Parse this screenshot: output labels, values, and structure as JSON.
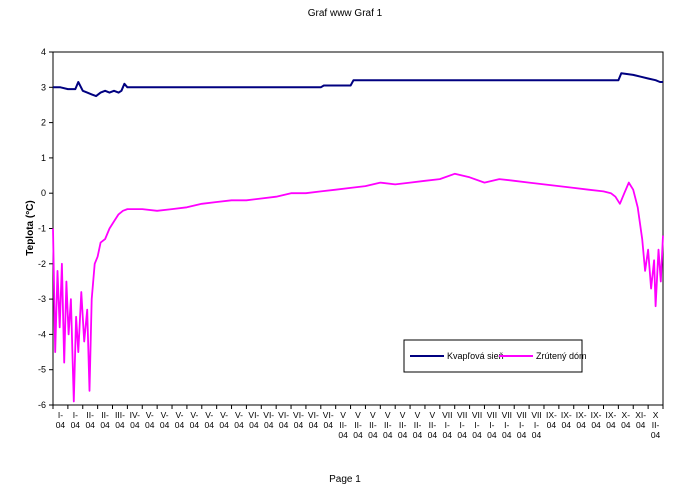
{
  "header": {
    "title": "Graf www Graf 1"
  },
  "footer": {
    "page_label": "Page 1"
  },
  "chart_data": {
    "type": "line",
    "title": "",
    "xlabel": "",
    "ylabel": "Teplota (°C)",
    "ylim": [
      -6,
      4
    ],
    "yticks": [
      4,
      3,
      2,
      1,
      0,
      -1,
      -2,
      -3,
      -4,
      -5,
      -6
    ],
    "grid": false,
    "legend_position": "bottom-right",
    "x_tick_labels": [
      "I-04",
      "I-04",
      "II-04",
      "II-04",
      "III-04",
      "IV-04",
      "V-04",
      "V-04",
      "V-04",
      "V-04",
      "V-04",
      "V-04",
      "V-04",
      "VI-04",
      "VI-04",
      "VI-04",
      "VI-04",
      "VI-04",
      "VI-04",
      "V II-04",
      "V II-04",
      "V II-04",
      "V II-04",
      "V II-04",
      "V II-04",
      "V II-04",
      "VII I-04",
      "VII I-04",
      "VII I-04",
      "VII I-04",
      "VII I-04",
      "VII I-04",
      "VII I-04",
      "IX-04",
      "IX-04",
      "IX-04",
      "IX-04",
      "IX-04",
      "X-04",
      "XI-04",
      "X II-04"
    ],
    "series": [
      {
        "name": "Kvapľová sieň",
        "color": "#000080",
        "points": [
          [
            0,
            3.0
          ],
          [
            0.5,
            3.0
          ],
          [
            1.0,
            2.95
          ],
          [
            1.5,
            2.95
          ],
          [
            1.7,
            3.15
          ],
          [
            2.0,
            2.9
          ],
          [
            2.3,
            2.85
          ],
          [
            2.6,
            2.8
          ],
          [
            2.9,
            2.75
          ],
          [
            3.2,
            2.85
          ],
          [
            3.5,
            2.9
          ],
          [
            3.8,
            2.85
          ],
          [
            4.1,
            2.9
          ],
          [
            4.4,
            2.85
          ],
          [
            4.6,
            2.9
          ],
          [
            4.8,
            3.1
          ],
          [
            5.0,
            3.0
          ],
          [
            6,
            3.0
          ],
          [
            8,
            3.0
          ],
          [
            10,
            3.0
          ],
          [
            12,
            3.0
          ],
          [
            14,
            3.0
          ],
          [
            16,
            3.0
          ],
          [
            18,
            3.0
          ],
          [
            18.2,
            3.05
          ],
          [
            20,
            3.05
          ],
          [
            20.2,
            3.2
          ],
          [
            24,
            3.2
          ],
          [
            28,
            3.2
          ],
          [
            32,
            3.2
          ],
          [
            36,
            3.2
          ],
          [
            38,
            3.2
          ],
          [
            38.2,
            3.4
          ],
          [
            39,
            3.35
          ],
          [
            39.5,
            3.3
          ],
          [
            40,
            3.25
          ],
          [
            40.5,
            3.2
          ],
          [
            40.8,
            3.15
          ],
          [
            41,
            3.15
          ]
        ]
      },
      {
        "name": "Zrútený dóm",
        "color": "#ff00ff",
        "points": [
          [
            0,
            -1.0
          ],
          [
            0.15,
            -4.5
          ],
          [
            0.3,
            -2.2
          ],
          [
            0.45,
            -3.8
          ],
          [
            0.6,
            -2.0
          ],
          [
            0.75,
            -4.8
          ],
          [
            0.9,
            -2.5
          ],
          [
            1.05,
            -4.0
          ],
          [
            1.2,
            -3.0
          ],
          [
            1.4,
            -5.9
          ],
          [
            1.55,
            -3.5
          ],
          [
            1.7,
            -4.5
          ],
          [
            1.9,
            -2.8
          ],
          [
            2.1,
            -4.2
          ],
          [
            2.3,
            -3.3
          ],
          [
            2.45,
            -5.6
          ],
          [
            2.6,
            -3.0
          ],
          [
            2.8,
            -2.0
          ],
          [
            3.0,
            -1.8
          ],
          [
            3.2,
            -1.4
          ],
          [
            3.5,
            -1.3
          ],
          [
            3.8,
            -1.0
          ],
          [
            4.1,
            -0.8
          ],
          [
            4.4,
            -0.6
          ],
          [
            4.7,
            -0.5
          ],
          [
            5.0,
            -0.45
          ],
          [
            6,
            -0.45
          ],
          [
            7,
            -0.5
          ],
          [
            8,
            -0.45
          ],
          [
            9,
            -0.4
          ],
          [
            10,
            -0.3
          ],
          [
            11,
            -0.25
          ],
          [
            12,
            -0.2
          ],
          [
            13,
            -0.2
          ],
          [
            14,
            -0.15
          ],
          [
            15,
            -0.1
          ],
          [
            16,
            0.0
          ],
          [
            17,
            0.0
          ],
          [
            18,
            0.05
          ],
          [
            19,
            0.1
          ],
          [
            20,
            0.15
          ],
          [
            21,
            0.2
          ],
          [
            22,
            0.3
          ],
          [
            23,
            0.25
          ],
          [
            24,
            0.3
          ],
          [
            25,
            0.35
          ],
          [
            26,
            0.4
          ],
          [
            27,
            0.55
          ],
          [
            28,
            0.45
          ],
          [
            29,
            0.3
          ],
          [
            30,
            0.4
          ],
          [
            31,
            0.35
          ],
          [
            32,
            0.3
          ],
          [
            33,
            0.25
          ],
          [
            34,
            0.2
          ],
          [
            35,
            0.15
          ],
          [
            36,
            0.1
          ],
          [
            37,
            0.05
          ],
          [
            37.5,
            0.0
          ],
          [
            37.8,
            -0.1
          ],
          [
            38.1,
            -0.3
          ],
          [
            38.4,
            0.0
          ],
          [
            38.7,
            0.3
          ],
          [
            39.0,
            0.1
          ],
          [
            39.3,
            -0.4
          ],
          [
            39.6,
            -1.3
          ],
          [
            39.8,
            -2.2
          ],
          [
            40.0,
            -1.6
          ],
          [
            40.2,
            -2.7
          ],
          [
            40.4,
            -1.9
          ],
          [
            40.5,
            -3.2
          ],
          [
            40.7,
            -1.6
          ],
          [
            40.85,
            -2.5
          ],
          [
            41,
            -1.2
          ]
        ]
      }
    ]
  }
}
